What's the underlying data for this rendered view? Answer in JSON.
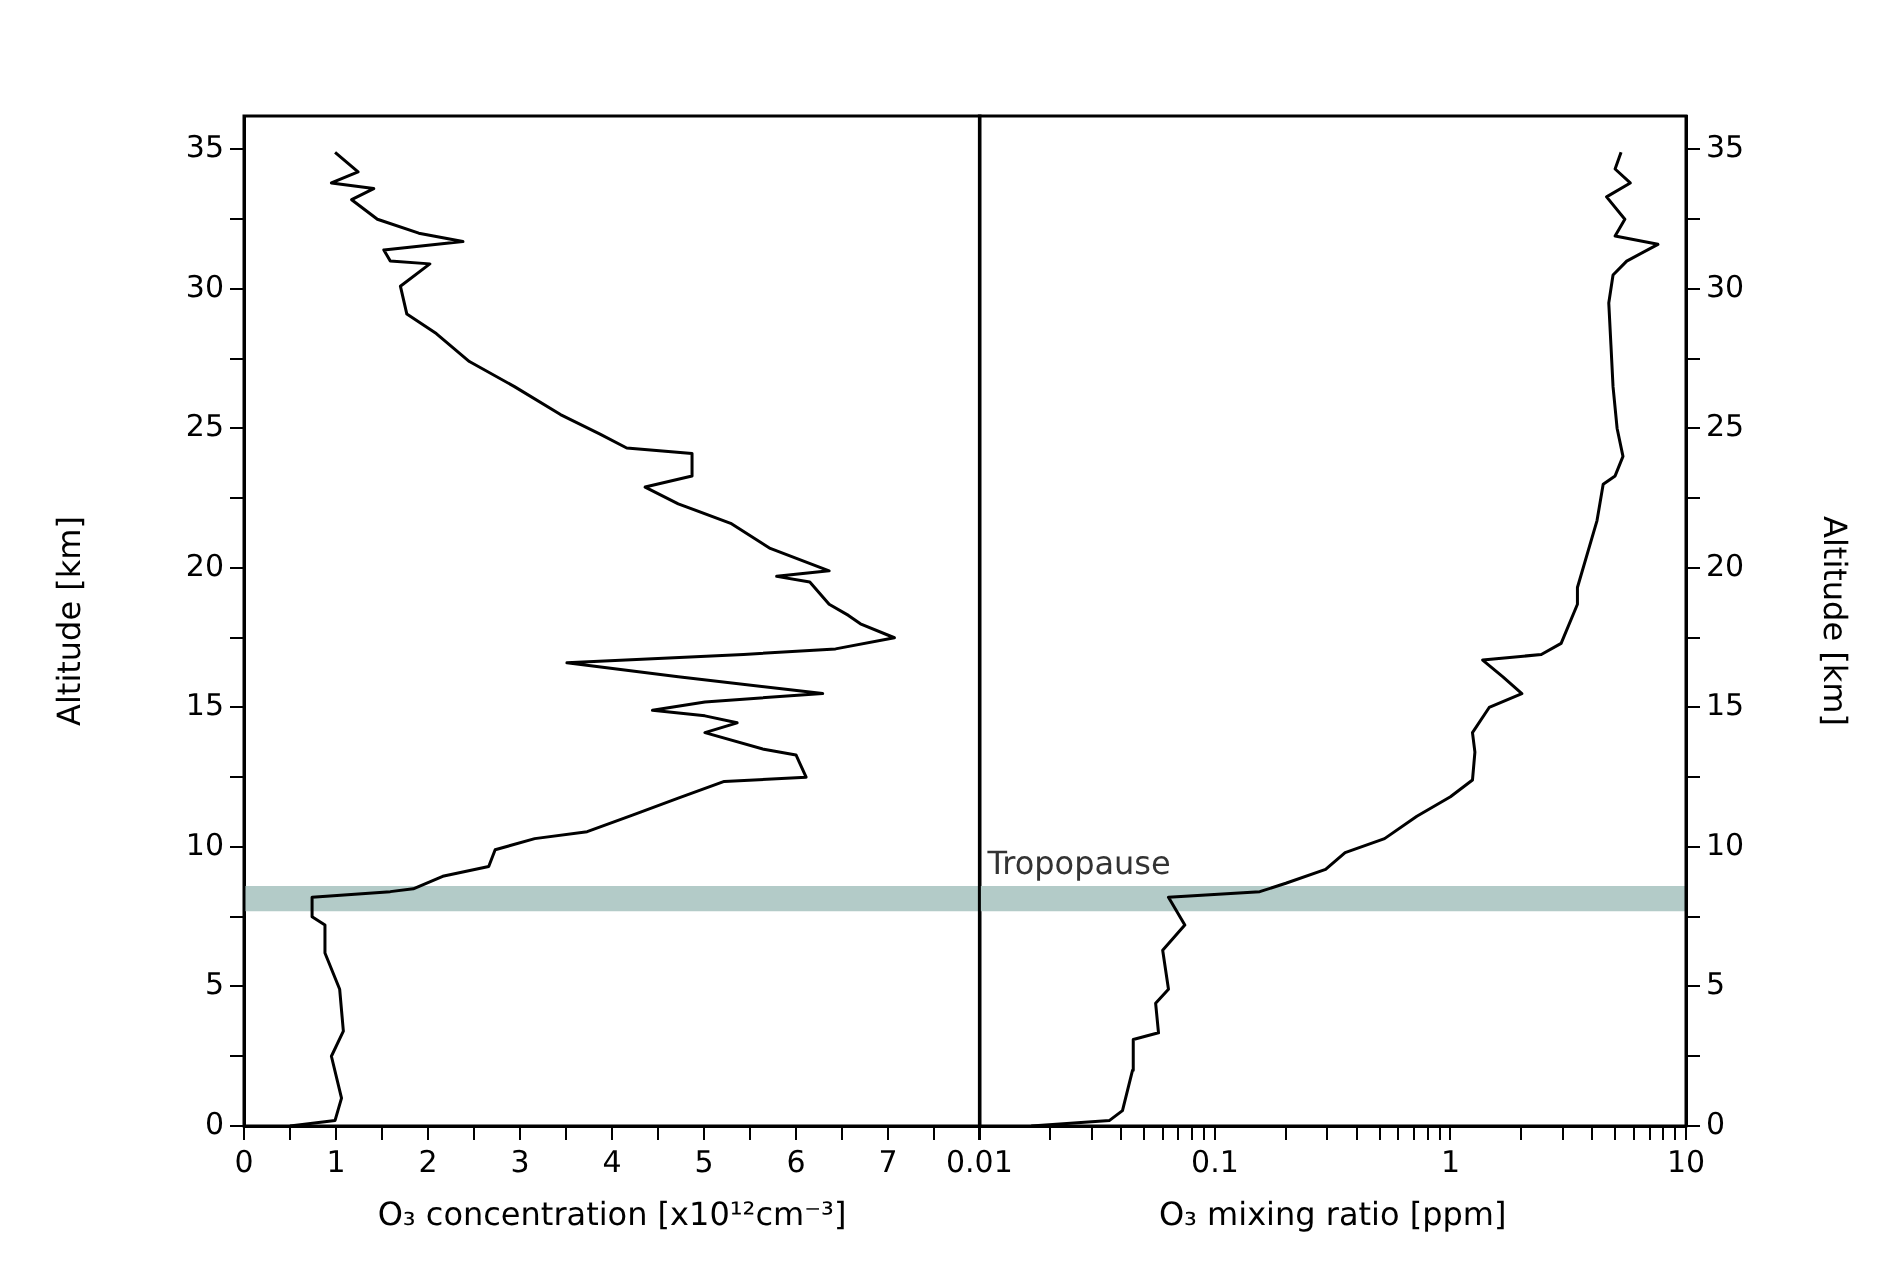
{
  "chart_data": [
    {
      "type": "line",
      "xlabel": "O₃ concentration [x10¹²cm⁻³]",
      "ylabel": "Altitude [km]",
      "xlim": [
        0,
        8
      ],
      "ylim": [
        0,
        36.2
      ],
      "xticks": [
        0,
        {
          "value": 0.5,
          "label": null
        },
        1,
        {
          "value": 1.5,
          "label": null
        },
        2,
        {
          "value": 2.5,
          "label": null
        },
        3,
        {
          "value": 3.5,
          "label": null
        },
        4,
        {
          "value": 4.5,
          "label": null
        },
        5,
        {
          "value": 5.5,
          "label": null
        },
        6,
        {
          "value": 6.5,
          "label": null
        },
        7,
        {
          "value": 7.5,
          "label": null
        },
        {
          "value": 8,
          "label": null
        }
      ],
      "yticks": [
        0,
        {
          "value": 2.5,
          "label": null
        },
        5,
        {
          "value": 7.5,
          "label": null
        },
        10,
        {
          "value": 12.5,
          "label": null
        },
        15,
        {
          "value": 17.5,
          "label": null
        },
        20,
        {
          "value": 22.5,
          "label": null
        },
        25,
        {
          "value": 27.5,
          "label": null
        },
        30,
        {
          "value": 32.5,
          "label": null
        },
        35
      ],
      "grid": false,
      "legend": false,
      "marker": "none",
      "series": [
        {
          "color": "#000000",
          "x": [
            0.5,
            0.99,
            1.06,
            0.95,
            1.08,
            1.04,
            0.88,
            0.88,
            0.74,
            0.74,
            1.59,
            1.84,
            2.16,
            2.66,
            2.73,
            3.16,
            3.73,
            4.23,
            4.72,
            5.22,
            6.11,
            6.0,
            5.65,
            5.01,
            5.36,
            5.01,
            4.44,
            5.01,
            6.29,
            4.72,
            3.51,
            5.43,
            6.43,
            7.07,
            6.7,
            6.57,
            6.36,
            6.15,
            5.79,
            6.36,
            5.72,
            5.29,
            4.72,
            4.36,
            4.87,
            4.87,
            4.16,
            3.87,
            3.44,
            2.94,
            2.45,
            2.09,
            1.77,
            1.7,
            2.02,
            1.59,
            1.52,
            2.38,
            1.9,
            1.45,
            1.17,
            1.41,
            0.95,
            1.24,
            0.99
          ],
          "values": [
            0.0,
            0.2,
            1.0,
            2.5,
            3.4,
            4.9,
            6.2,
            7.2,
            7.5,
            8.2,
            8.4,
            8.5,
            8.95,
            9.3,
            9.9,
            10.3,
            10.55,
            11.15,
            11.75,
            12.35,
            12.5,
            13.3,
            13.5,
            14.1,
            14.45,
            14.7,
            14.9,
            15.2,
            15.5,
            16.1,
            16.6,
            16.9,
            17.1,
            17.5,
            18.0,
            18.3,
            18.7,
            19.5,
            19.7,
            19.9,
            20.7,
            21.6,
            22.3,
            22.9,
            23.3,
            24.1,
            24.3,
            24.8,
            25.5,
            26.5,
            27.4,
            28.4,
            29.1,
            30.1,
            30.9,
            31.0,
            31.4,
            31.7,
            32.0,
            32.5,
            33.2,
            33.6,
            33.8,
            34.2,
            34.9
          ]
        }
      ],
      "bands": [
        {
          "axis": "y",
          "from": 7.7,
          "to": 8.6,
          "color": "#b3cbc8"
        }
      ]
    },
    {
      "type": "line",
      "xlabel": "O₃ mixing ratio [ppm]",
      "y2label": "Altitude [km]",
      "log": "x",
      "xlim": [
        0.01,
        10
      ],
      "y2lim": [
        0,
        36.2
      ],
      "xticks": [
        0.01,
        {
          "value": 0.02,
          "label": null
        },
        {
          "value": 0.03,
          "label": null
        },
        {
          "value": 0.04,
          "label": null
        },
        {
          "value": 0.05,
          "label": null
        },
        {
          "value": 0.06,
          "label": null
        },
        {
          "value": 0.07,
          "label": null
        },
        {
          "value": 0.08,
          "label": null
        },
        {
          "value": 0.09,
          "label": null
        },
        0.1,
        {
          "value": 0.2,
          "label": null
        },
        {
          "value": 0.3,
          "label": null
        },
        {
          "value": 0.4,
          "label": null
        },
        {
          "value": 0.5,
          "label": null
        },
        {
          "value": 0.6,
          "label": null
        },
        {
          "value": 0.7,
          "label": null
        },
        {
          "value": 0.8,
          "label": null
        },
        {
          "value": 0.9,
          "label": null
        },
        1,
        {
          "value": 2,
          "label": null
        },
        {
          "value": 3,
          "label": null
        },
        {
          "value": 4,
          "label": null
        },
        {
          "value": 5,
          "label": null
        },
        {
          "value": 6,
          "label": null
        },
        {
          "value": 7,
          "label": null
        },
        {
          "value": 8,
          "label": null
        },
        {
          "value": 9,
          "label": null
        },
        10
      ],
      "y2ticks": [
        0,
        {
          "value": 2.5,
          "label": null
        },
        5,
        {
          "value": 7.5,
          "label": null
        },
        10,
        {
          "value": 12.5,
          "label": null
        },
        15,
        {
          "value": 17.5,
          "label": null
        },
        20,
        {
          "value": 22.5,
          "label": null
        },
        25,
        {
          "value": 27.5,
          "label": null
        },
        30,
        {
          "value": 32.5,
          "label": null
        },
        35
      ],
      "grid": false,
      "legend": false,
      "marker": "none",
      "series": [
        {
          "color": "#000000",
          "axis": "y2",
          "x": [
            0.0166,
            0.0357,
            0.0405,
            0.0447,
            0.045,
            0.0576,
            0.056,
            0.0635,
            0.06,
            0.0745,
            0.0635,
            0.155,
            0.2,
            0.295,
            0.357,
            0.525,
            0.72,
            1.0,
            1.24,
            1.27,
            1.24,
            1.46,
            2.01,
            1.67,
            1.37,
            2.43,
            2.95,
            3.46,
            3.46,
            4.19,
            4.45,
            5.0,
            5.4,
            5.1,
            4.9,
            4.8,
            4.7,
            4.9,
            5.6,
            7.6,
            5.0,
            5.5,
            4.6,
            5.8,
            5.0,
            5.3
          ],
          "values": [
            0.0,
            0.2,
            0.55,
            2.0,
            3.1,
            3.34,
            4.4,
            4.9,
            6.3,
            7.2,
            8.2,
            8.4,
            8.7,
            9.2,
            9.8,
            10.3,
            11.1,
            11.8,
            12.4,
            13.4,
            14.1,
            15.0,
            15.5,
            16.1,
            16.7,
            16.9,
            17.3,
            18.7,
            19.3,
            21.7,
            23.0,
            23.3,
            24.0,
            25.0,
            26.5,
            28.0,
            29.5,
            30.5,
            31.0,
            31.6,
            31.9,
            32.5,
            33.3,
            33.8,
            34.3,
            34.9
          ]
        }
      ],
      "bands": [
        {
          "axis": "y2",
          "from": 7.7,
          "to": 8.6,
          "label": "Tropopause",
          "color": "#b3cbc8"
        }
      ]
    }
  ]
}
